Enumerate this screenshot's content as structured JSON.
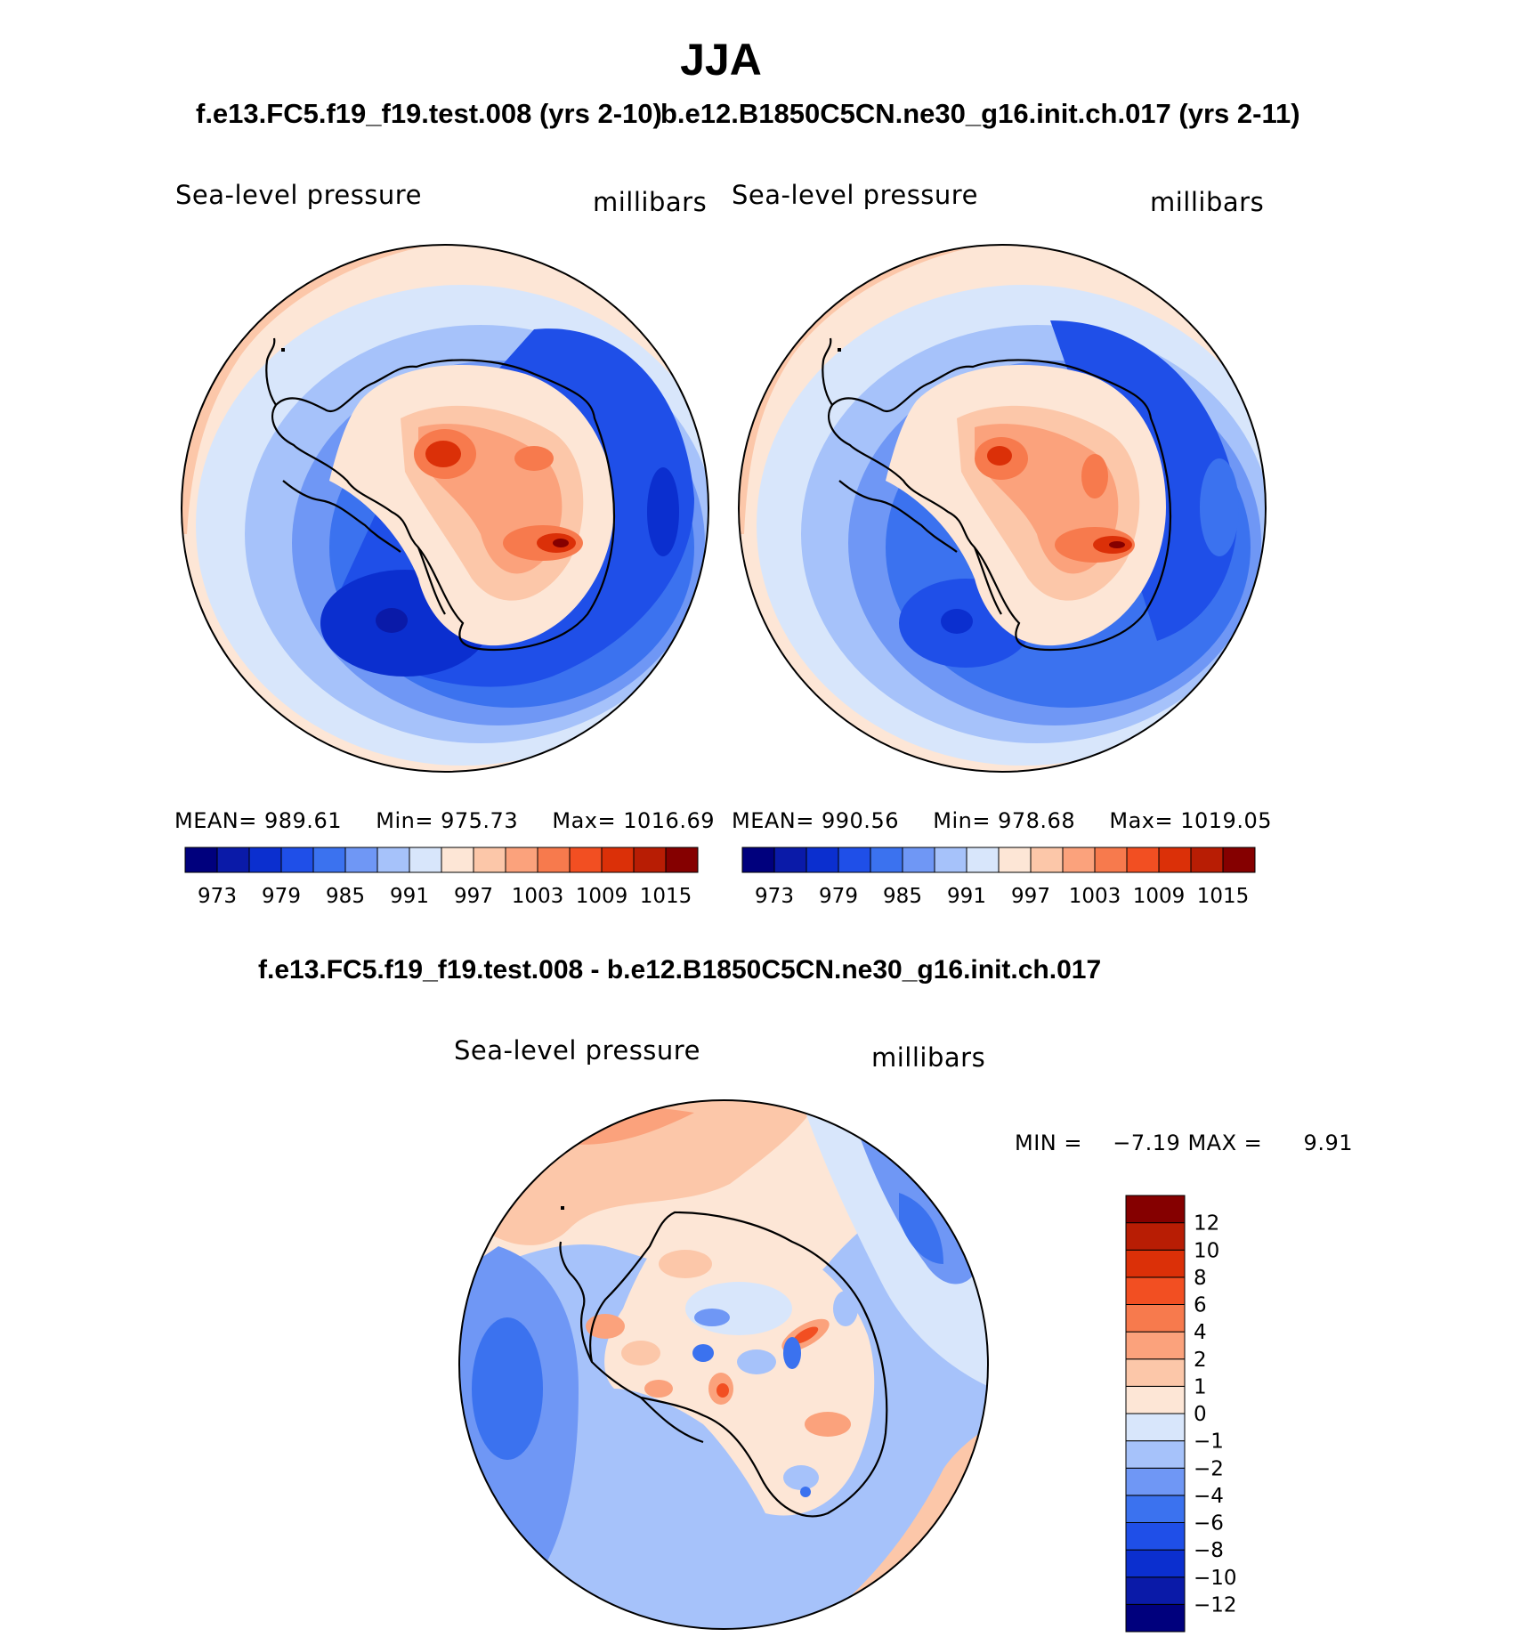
{
  "figure": {
    "season": "JJA",
    "title_left": "f.e13.FC5.f19_f19.test.008 (yrs 2-10)",
    "title_right": "b.e12.B1850C5CN.ne30_g16.init.ch.017 (yrs 2-11)",
    "diff_title": "f.e13.FC5.f19_f19.test.008 - b.e12.B1850C5CN.ne30_g16.init.ch.017"
  },
  "chart_data": [
    {
      "type": "heatmap",
      "projection": "south-polar-stereographic",
      "variable": "Sea-level pressure",
      "units": "millibars",
      "case": "f.e13.FC5.f19_f19.test.008",
      "stats": {
        "mean_label": "MEAN=",
        "mean": "989.61",
        "min_label": "Min=",
        "min": "975.73",
        "max_label": "Max=",
        "max": "1016.69"
      },
      "colorbar": {
        "orientation": "horizontal",
        "levels": [
          973,
          976,
          979,
          982,
          985,
          988,
          991,
          994,
          997,
          1000,
          1003,
          1006,
          1009,
          1012,
          1015
        ],
        "tick_labels": [
          "973",
          "979",
          "985",
          "991",
          "997",
          "1003",
          "1009",
          "1015"
        ]
      }
    },
    {
      "type": "heatmap",
      "projection": "south-polar-stereographic",
      "variable": "Sea-level pressure",
      "units": "millibars",
      "case": "b.e12.B1850C5CN.ne30_g16.init.ch.017",
      "stats": {
        "mean_label": "MEAN=",
        "mean": "990.56",
        "min_label": "Min=",
        "min": "978.68",
        "max_label": "Max=",
        "max": "1019.05"
      },
      "colorbar": {
        "orientation": "horizontal",
        "levels": [
          973,
          976,
          979,
          982,
          985,
          988,
          991,
          994,
          997,
          1000,
          1003,
          1006,
          1009,
          1012,
          1015
        ],
        "tick_labels": [
          "973",
          "979",
          "985",
          "991",
          "997",
          "1003",
          "1009",
          "1015"
        ]
      }
    },
    {
      "type": "heatmap",
      "projection": "south-polar-stereographic",
      "variable": "Sea-level pressure",
      "units": "millibars",
      "case": "difference",
      "stats": {
        "min_label": "MIN =",
        "min": "−7.19",
        "max_label": "MAX =",
        "max": "9.91"
      },
      "colorbar": {
        "orientation": "vertical",
        "levels": [
          -12,
          -10,
          -8,
          -6,
          -4,
          -2,
          -1,
          0,
          1,
          2,
          4,
          6,
          8,
          10,
          12
        ],
        "tick_labels": [
          "−12",
          "−10",
          "−8",
          "−6",
          "−4",
          "−2",
          "−1",
          "0",
          "1",
          "2",
          "4",
          "6",
          "8",
          "10",
          "12"
        ]
      }
    }
  ],
  "colors": {
    "abs_palette": [
      "#00007d",
      "#0a1aa8",
      "#0b2fcf",
      "#1f4fe8",
      "#3b72ef",
      "#6f97f5",
      "#a6c2fa",
      "#d8e6fb",
      "#fde6d6",
      "#fcc7a9",
      "#fba27c",
      "#f77a4d",
      "#f24f22",
      "#db3008",
      "#b81d04",
      "#850000"
    ],
    "diff_palette": [
      "#00007d",
      "#0a1aa8",
      "#0b2fcf",
      "#1f4fe8",
      "#3b72ef",
      "#6f97f5",
      "#a6c2fa",
      "#d8e6fb",
      "#fde6d6",
      "#fcc7a9",
      "#fba27c",
      "#f77a4d",
      "#f24f22",
      "#db3008",
      "#b81d04",
      "#850000"
    ],
    "coastline": "#000000"
  }
}
